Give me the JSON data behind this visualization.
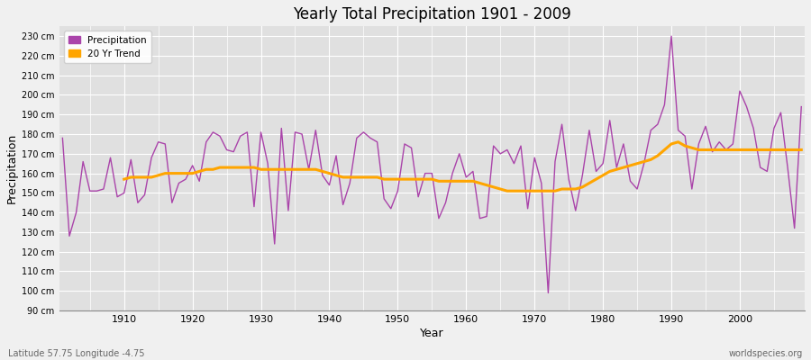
{
  "title": "Yearly Total Precipitation 1901 - 2009",
  "xlabel": "Year",
  "ylabel": "Precipitation",
  "subtitle_left": "Latitude 57.75 Longitude -4.75",
  "subtitle_right": "worldspecies.org",
  "precip_color": "#aa44aa",
  "trend_color": "#FFA500",
  "bg_color": "#f0f0f0",
  "plot_bg_color": "#e0e0e0",
  "ylim": [
    90,
    235
  ],
  "ytick_step": 10,
  "years": [
    1901,
    1902,
    1903,
    1904,
    1905,
    1906,
    1907,
    1908,
    1909,
    1910,
    1911,
    1912,
    1913,
    1914,
    1915,
    1916,
    1917,
    1918,
    1919,
    1920,
    1921,
    1922,
    1923,
    1924,
    1925,
    1926,
    1927,
    1928,
    1929,
    1930,
    1931,
    1932,
    1933,
    1934,
    1935,
    1936,
    1937,
    1938,
    1939,
    1940,
    1941,
    1942,
    1943,
    1944,
    1945,
    1946,
    1947,
    1948,
    1949,
    1950,
    1951,
    1952,
    1953,
    1954,
    1955,
    1956,
    1957,
    1958,
    1959,
    1960,
    1961,
    1962,
    1963,
    1964,
    1965,
    1966,
    1967,
    1968,
    1969,
    1970,
    1971,
    1972,
    1973,
    1974,
    1975,
    1976,
    1977,
    1978,
    1979,
    1980,
    1981,
    1982,
    1983,
    1984,
    1985,
    1986,
    1987,
    1988,
    1989,
    1990,
    1991,
    1992,
    1993,
    1994,
    1995,
    1996,
    1997,
    1998,
    1999,
    2000,
    2001,
    2002,
    2003,
    2004,
    2005,
    2006,
    2007,
    2008,
    2009
  ],
  "precip": [
    178,
    128,
    140,
    166,
    151,
    151,
    152,
    168,
    148,
    150,
    167,
    145,
    149,
    168,
    176,
    175,
    145,
    155,
    157,
    164,
    156,
    176,
    181,
    179,
    172,
    171,
    179,
    181,
    143,
    181,
    165,
    124,
    183,
    141,
    181,
    180,
    162,
    182,
    159,
    154,
    169,
    144,
    155,
    178,
    181,
    178,
    176,
    147,
    142,
    151,
    175,
    173,
    148,
    160,
    160,
    137,
    145,
    160,
    170,
    158,
    161,
    137,
    138,
    174,
    170,
    172,
    165,
    174,
    142,
    168,
    155,
    99,
    166,
    185,
    157,
    141,
    159,
    182,
    161,
    165,
    187,
    163,
    175,
    156,
    152,
    165,
    182,
    185,
    195,
    230,
    182,
    179,
    152,
    175,
    184,
    171,
    176,
    172,
    175,
    202,
    194,
    183,
    163,
    161,
    183,
    191,
    163,
    132,
    194
  ],
  "trend": [
    null,
    null,
    null,
    null,
    null,
    null,
    null,
    null,
    null,
    157,
    158,
    158,
    158,
    158,
    159,
    160,
    160,
    160,
    160,
    160,
    161,
    162,
    162,
    163,
    163,
    163,
    163,
    163,
    163,
    162,
    162,
    162,
    162,
    162,
    162,
    162,
    162,
    162,
    161,
    160,
    159,
    158,
    158,
    158,
    158,
    158,
    158,
    157,
    157,
    157,
    157,
    157,
    157,
    157,
    157,
    156,
    156,
    156,
    156,
    156,
    156,
    155,
    154,
    153,
    152,
    151,
    151,
    151,
    151,
    151,
    151,
    151,
    151,
    152,
    152,
    152,
    153,
    155,
    157,
    159,
    161,
    162,
    163,
    164,
    165,
    166,
    167,
    169,
    172,
    175,
    176,
    174,
    173,
    172,
    172,
    172,
    172,
    172,
    172,
    172,
    172,
    172,
    172,
    172,
    172,
    172,
    172,
    172,
    172
  ],
  "legend_labels": [
    "Precipitation",
    "20 Yr Trend"
  ],
  "legend_colors": [
    "#aa44aa",
    "#FFA500"
  ],
  "xtick_positions": [
    1910,
    1920,
    1930,
    1940,
    1950,
    1960,
    1970,
    1980,
    1990,
    2000
  ]
}
